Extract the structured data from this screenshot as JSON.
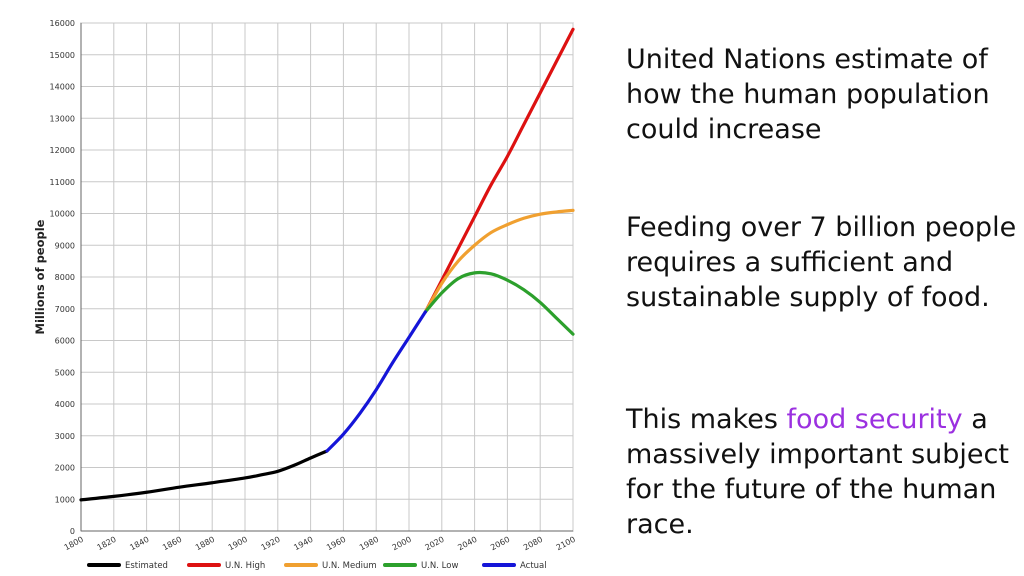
{
  "text": {
    "para1": "United Nations estimate of how the human population could increase",
    "para2": "Feeding over 7 billion people requires a sufficient and sustainable supply of food.",
    "para3_before": "This makes ",
    "para3_highlight": "food security",
    "para3_after": " a massively important subject for the future of the human race.",
    "highlight_color": "#9b30e0"
  },
  "chart_data": {
    "type": "line",
    "title": "",
    "xlabel": "",
    "ylabel": "Millions of people",
    "xlim": [
      1800,
      2100
    ],
    "ylim": [
      0,
      16000
    ],
    "x_ticks": [
      1800,
      1820,
      1840,
      1860,
      1880,
      1900,
      1920,
      1940,
      1960,
      1980,
      2000,
      2020,
      2040,
      2060,
      2080,
      2100
    ],
    "y_ticks": [
      0,
      1000,
      2000,
      3000,
      4000,
      5000,
      6000,
      7000,
      8000,
      9000,
      10000,
      11000,
      12000,
      13000,
      14000,
      15000,
      16000
    ],
    "grid": true,
    "legend_position": "bottom",
    "series": [
      {
        "name": "Estimated",
        "color": "#000000",
        "points": [
          [
            1800,
            980
          ],
          [
            1820,
            1090
          ],
          [
            1840,
            1220
          ],
          [
            1860,
            1380
          ],
          [
            1880,
            1520
          ],
          [
            1900,
            1670
          ],
          [
            1910,
            1770
          ],
          [
            1920,
            1880
          ],
          [
            1930,
            2070
          ],
          [
            1940,
            2300
          ],
          [
            1950,
            2520
          ]
        ]
      },
      {
        "name": "U.N. High",
        "color": "#dd1111",
        "points": [
          [
            2010,
            6900
          ],
          [
            2020,
            7900
          ],
          [
            2030,
            8900
          ],
          [
            2040,
            9900
          ],
          [
            2050,
            10900
          ],
          [
            2060,
            11800
          ],
          [
            2070,
            12800
          ],
          [
            2080,
            13800
          ],
          [
            2090,
            14800
          ],
          [
            2100,
            15800
          ]
        ]
      },
      {
        "name": "U.N. Medium",
        "color": "#f0a030",
        "points": [
          [
            2010,
            6900
          ],
          [
            2020,
            7800
          ],
          [
            2030,
            8500
          ],
          [
            2040,
            9000
          ],
          [
            2050,
            9400
          ],
          [
            2060,
            9650
          ],
          [
            2070,
            9850
          ],
          [
            2080,
            9980
          ],
          [
            2090,
            10050
          ],
          [
            2100,
            10100
          ]
        ]
      },
      {
        "name": "U.N. Low",
        "color": "#2ca02c",
        "points": [
          [
            2010,
            6900
          ],
          [
            2020,
            7500
          ],
          [
            2030,
            7950
          ],
          [
            2040,
            8130
          ],
          [
            2050,
            8100
          ],
          [
            2060,
            7900
          ],
          [
            2070,
            7600
          ],
          [
            2080,
            7200
          ],
          [
            2090,
            6700
          ],
          [
            2100,
            6200
          ]
        ]
      },
      {
        "name": "Actual",
        "color": "#1515d8",
        "points": [
          [
            1950,
            2520
          ],
          [
            1960,
            3050
          ],
          [
            1970,
            3700
          ],
          [
            1980,
            4450
          ],
          [
            1990,
            5300
          ],
          [
            2000,
            6100
          ],
          [
            2010,
            6900
          ]
        ]
      }
    ]
  }
}
